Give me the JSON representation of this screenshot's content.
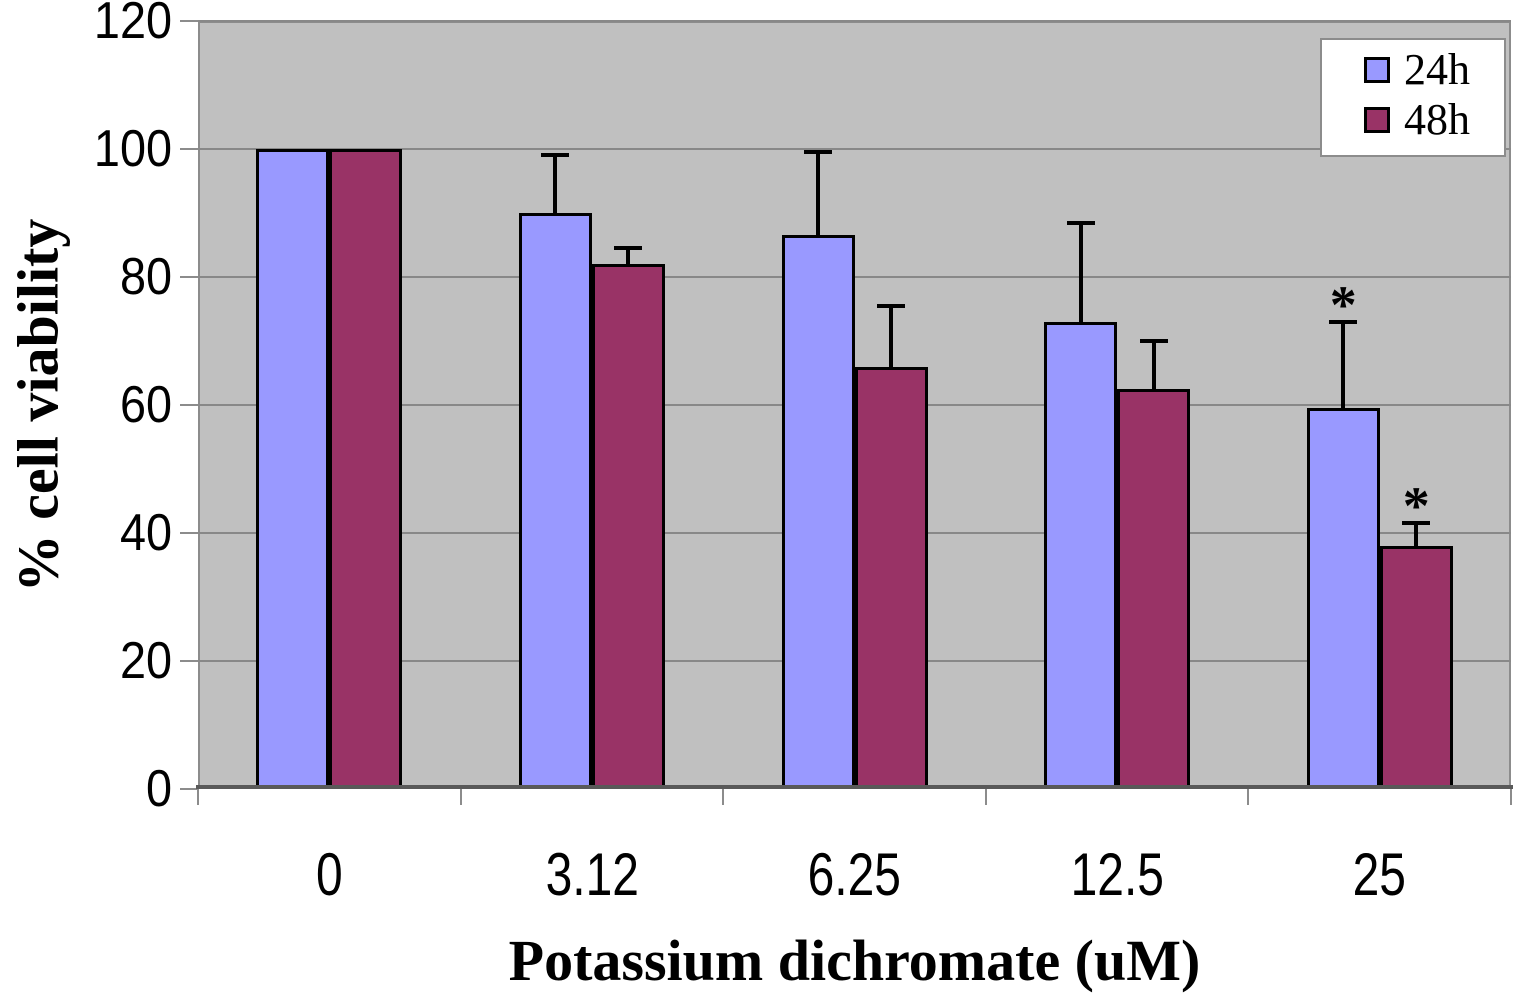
{
  "chart_data": {
    "type": "bar",
    "title": "",
    "xlabel": "Potassium dichromate (uM)",
    "ylabel": "% cell viability",
    "categories": [
      "0",
      "3.12",
      "6.25",
      "12.5",
      "25"
    ],
    "series": [
      {
        "name": "24h",
        "color": "#9999FF",
        "values": [
          100,
          90,
          86.5,
          73,
          59.5
        ],
        "errors_plus": [
          0,
          9,
          13,
          15.5,
          13.5
        ],
        "annotations": [
          "",
          "",
          "",
          "",
          "*"
        ]
      },
      {
        "name": "48h",
        "color": "#993366",
        "values": [
          100,
          82,
          66,
          62.5,
          38
        ],
        "errors_plus": [
          0,
          2.5,
          9.5,
          7.5,
          3.5
        ],
        "annotations": [
          "",
          "",
          "",
          "",
          "*"
        ]
      }
    ],
    "ylim": [
      0,
      120
    ],
    "yticks": [
      0,
      20,
      40,
      60,
      80,
      100,
      120
    ],
    "grid": true,
    "legend_position": "top-right",
    "plot_background": "#C0C0C0",
    "gridline_color": "#888888",
    "bar_border_color": "#000000",
    "error_bar_color": "#000000",
    "significance_marker": "*"
  }
}
